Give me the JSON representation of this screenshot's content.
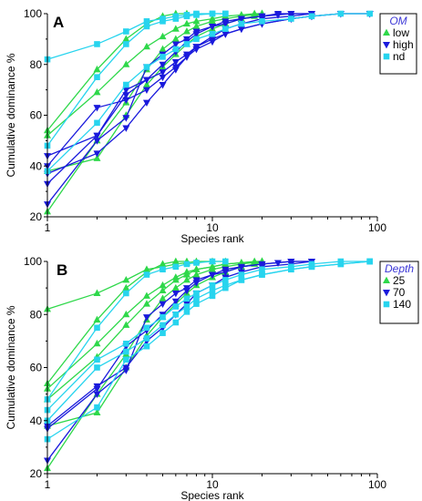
{
  "chart_data": [
    {
      "type": "line",
      "panel_label": "A",
      "xscale": "log",
      "xlim": [
        1,
        100
      ],
      "ylim": [
        20,
        100
      ],
      "xticks": [
        "1",
        "10",
        "100"
      ],
      "yticks": [
        "20",
        "40",
        "60",
        "80",
        "100"
      ],
      "xlabel": "Species rank",
      "ylabel": "Cumulative dominance %",
      "legend": {
        "title": "OM",
        "position": "top-right",
        "entries": [
          "low",
          "high",
          "nd"
        ]
      },
      "series": [
        {
          "group": "low",
          "color": "#2ed84a",
          "marker": "triangle-up",
          "x": [
            1,
            2,
            3,
            4,
            5,
            6,
            7,
            8,
            10,
            12,
            15,
            20
          ],
          "y": [
            22,
            50,
            65,
            78,
            86,
            90,
            93,
            95,
            97,
            98,
            99,
            100
          ]
        },
        {
          "group": "low",
          "color": "#2ed84a",
          "marker": "triangle-up",
          "x": [
            1,
            2,
            3,
            4,
            5,
            6,
            7,
            8,
            10,
            12,
            15,
            18,
            20
          ],
          "y": [
            38,
            43,
            60,
            72,
            79,
            84,
            88,
            91,
            94,
            96,
            98,
            99,
            100
          ]
        },
        {
          "group": "low",
          "color": "#2ed84a",
          "marker": "triangle-up",
          "x": [
            1,
            2,
            3,
            4,
            5,
            6,
            7,
            8,
            10,
            12,
            15,
            18,
            20
          ],
          "y": [
            52,
            69,
            80,
            87,
            91,
            94,
            96,
            97,
            98,
            99,
            99.5,
            100,
            100
          ]
        },
        {
          "group": "low",
          "color": "#2ed84a",
          "marker": "triangle-up",
          "x": [
            1,
            2,
            3,
            4,
            5,
            6,
            7
          ],
          "y": [
            54,
            78,
            90,
            96,
            99,
            100,
            100
          ]
        },
        {
          "group": "high",
          "color": "#1a1adc",
          "marker": "triangle-down",
          "x": [
            1,
            2,
            3,
            4,
            5,
            6,
            7,
            8,
            10,
            12,
            15,
            20,
            25,
            30,
            40
          ],
          "y": [
            25,
            50,
            59,
            79,
            84,
            88,
            90,
            93,
            95,
            97,
            98,
            99,
            99.5,
            100,
            100
          ]
        },
        {
          "group": "high",
          "color": "#1a1adc",
          "marker": "triangle-down",
          "x": [
            1,
            2,
            3,
            4,
            5,
            6,
            7,
            8,
            10,
            12,
            15,
            20,
            25,
            30,
            40
          ],
          "y": [
            33,
            52,
            68,
            74,
            80,
            85,
            89,
            92,
            95,
            96,
            98,
            99,
            100,
            100,
            100
          ]
        },
        {
          "group": "high",
          "color": "#1a1adc",
          "marker": "triangle-down",
          "x": [
            1,
            2,
            3,
            4,
            5,
            6,
            7,
            8,
            10,
            12,
            15,
            20,
            30,
            40
          ],
          "y": [
            37,
            45,
            55,
            65,
            72,
            78,
            83,
            87,
            91,
            94,
            96,
            98,
            99,
            100
          ]
        },
        {
          "group": "high",
          "color": "#1a1adc",
          "marker": "triangle-down",
          "x": [
            1,
            2,
            3,
            4,
            5,
            6,
            7,
            8,
            10,
            12,
            15,
            20,
            30,
            40,
            60,
            90
          ],
          "y": [
            40,
            63,
            66,
            70,
            75,
            79,
            83,
            86,
            89,
            92,
            94,
            96,
            98,
            99,
            100,
            100
          ]
        },
        {
          "group": "high",
          "color": "#1a1adc",
          "marker": "triangle-down",
          "x": [
            1,
            2,
            3,
            4,
            5,
            6,
            7,
            8,
            10,
            12,
            15,
            20,
            30,
            40,
            60,
            90
          ],
          "y": [
            44,
            52,
            70,
            74,
            77,
            81,
            84,
            87,
            90,
            92,
            94,
            96,
            98,
            99,
            100,
            100
          ]
        },
        {
          "group": "nd",
          "color": "#27d4ee",
          "marker": "square",
          "x": [
            1,
            2,
            3,
            4,
            5,
            6,
            7,
            8,
            10,
            12
          ],
          "y": [
            82,
            88,
            93,
            97,
            98,
            99,
            99.5,
            100,
            100,
            100
          ]
        },
        {
          "group": "nd",
          "color": "#27d4ee",
          "marker": "square",
          "x": [
            1,
            2,
            3,
            4,
            5,
            6,
            7,
            8,
            10,
            12
          ],
          "y": [
            48,
            75,
            88,
            95,
            97,
            98,
            99,
            99.5,
            100,
            100
          ]
        },
        {
          "group": "nd",
          "color": "#27d4ee",
          "marker": "square",
          "x": [
            1,
            2,
            3,
            4,
            5,
            6,
            7,
            8,
            10,
            12,
            15,
            20,
            30,
            40,
            60,
            90
          ],
          "y": [
            38,
            57,
            72,
            79,
            83,
            86,
            88,
            90,
            92,
            94,
            96,
            97,
            98,
            99,
            100,
            100
          ]
        }
      ]
    },
    {
      "type": "line",
      "panel_label": "B",
      "xscale": "log",
      "xlim": [
        1,
        100
      ],
      "ylim": [
        20,
        100
      ],
      "xticks": [
        "1",
        "10",
        "100"
      ],
      "yticks": [
        "20",
        "40",
        "60",
        "80",
        "100"
      ],
      "xlabel": "Species rank",
      "ylabel": "Cumulative dominance %",
      "legend": {
        "title": "Depth",
        "position": "top-right",
        "entries": [
          "25",
          "70",
          "140"
        ]
      },
      "series": [
        {
          "group": "25",
          "color": "#2ed84a",
          "marker": "triangle-up",
          "x": [
            1,
            2,
            3,
            4,
            5,
            6,
            7,
            8,
            10,
            12
          ],
          "y": [
            82,
            88,
            93,
            97,
            98,
            99,
            99.5,
            100,
            100,
            100
          ]
        },
        {
          "group": "25",
          "color": "#2ed84a",
          "marker": "triangle-up",
          "x": [
            1,
            2,
            3,
            4,
            5,
            6,
            7
          ],
          "y": [
            54,
            78,
            90,
            96,
            99,
            100,
            100
          ]
        },
        {
          "group": "25",
          "color": "#2ed84a",
          "marker": "triangle-up",
          "x": [
            1,
            2,
            3,
            4,
            5,
            6,
            7,
            8,
            10,
            12,
            15,
            18,
            20
          ],
          "y": [
            52,
            69,
            80,
            87,
            91,
            94,
            96,
            97,
            98,
            99,
            99.5,
            100,
            100
          ]
        },
        {
          "group": "25",
          "color": "#2ed84a",
          "marker": "triangle-up",
          "x": [
            1,
            2,
            3,
            4,
            5,
            6,
            7,
            8,
            10,
            12,
            15,
            20
          ],
          "y": [
            48,
            64,
            76,
            84,
            89,
            93,
            95,
            97,
            98,
            99,
            99.5,
            100
          ]
        },
        {
          "group": "25",
          "color": "#2ed84a",
          "marker": "triangle-up",
          "x": [
            1,
            2,
            3,
            4,
            5,
            6,
            7,
            8,
            10,
            12,
            15,
            18,
            20
          ],
          "y": [
            38,
            43,
            60,
            72,
            79,
            84,
            88,
            91,
            94,
            96,
            98,
            99,
            100
          ]
        },
        {
          "group": "25",
          "color": "#2ed84a",
          "marker": "triangle-up",
          "x": [
            1,
            2,
            3,
            4,
            5,
            6,
            7,
            8,
            10,
            12,
            15,
            20
          ],
          "y": [
            22,
            50,
            65,
            78,
            86,
            90,
            93,
            95,
            97,
            98,
            99,
            100
          ]
        },
        {
          "group": "70",
          "color": "#1a1adc",
          "marker": "triangle-down",
          "x": [
            1,
            2,
            3,
            4,
            5,
            6,
            7,
            8,
            10,
            12,
            15,
            20,
            25,
            30,
            40
          ],
          "y": [
            25,
            50,
            59,
            79,
            84,
            88,
            90,
            93,
            95,
            97,
            98,
            99,
            99.5,
            100,
            100
          ]
        },
        {
          "group": "70",
          "color": "#1a1adc",
          "marker": "triangle-down",
          "x": [
            1,
            2,
            3,
            4,
            5,
            6,
            7,
            8,
            10,
            12,
            15,
            20,
            30,
            40
          ],
          "y": [
            37,
            52,
            68,
            74,
            80,
            85,
            89,
            92,
            95,
            96,
            98,
            99,
            100,
            100
          ]
        },
        {
          "group": "70",
          "color": "#1a1adc",
          "marker": "triangle-down",
          "x": [
            1,
            2,
            3,
            4,
            5,
            6,
            7,
            8,
            10,
            12,
            15,
            20,
            30,
            40
          ],
          "y": [
            38,
            53,
            60,
            70,
            75,
            80,
            84,
            88,
            91,
            94,
            96,
            98,
            99,
            100
          ]
        },
        {
          "group": "140",
          "color": "#27d4ee",
          "marker": "square",
          "x": [
            1,
            2,
            3,
            4,
            5,
            6,
            7,
            8,
            10,
            12
          ],
          "y": [
            48,
            75,
            88,
            95,
            97,
            98,
            99,
            99.5,
            100,
            100
          ]
        },
        {
          "group": "140",
          "color": "#27d4ee",
          "marker": "square",
          "x": [
            1,
            2,
            3,
            4,
            5,
            6,
            7,
            8,
            10,
            12,
            15,
            20,
            30,
            40,
            60,
            90
          ],
          "y": [
            44,
            63,
            69,
            75,
            79,
            83,
            86,
            88,
            91,
            93,
            95,
            97,
            98,
            99,
            100,
            100
          ]
        },
        {
          "group": "140",
          "color": "#27d4ee",
          "marker": "square",
          "x": [
            1,
            2,
            3,
            4,
            5,
            6,
            7,
            8,
            10,
            12,
            15,
            20,
            30,
            40,
            60,
            90
          ],
          "y": [
            40,
            60,
            66,
            71,
            76,
            80,
            83,
            86,
            89,
            91,
            93,
            95,
            97,
            98,
            99,
            100
          ]
        },
        {
          "group": "140",
          "color": "#27d4ee",
          "marker": "square",
          "x": [
            1,
            2,
            3,
            4,
            5,
            6,
            7,
            8,
            10,
            12,
            15,
            20,
            30,
            40,
            60,
            90
          ],
          "y": [
            33,
            45,
            63,
            68,
            73,
            77,
            81,
            84,
            87,
            90,
            93,
            95,
            97,
            98,
            99,
            100
          ]
        }
      ]
    }
  ]
}
